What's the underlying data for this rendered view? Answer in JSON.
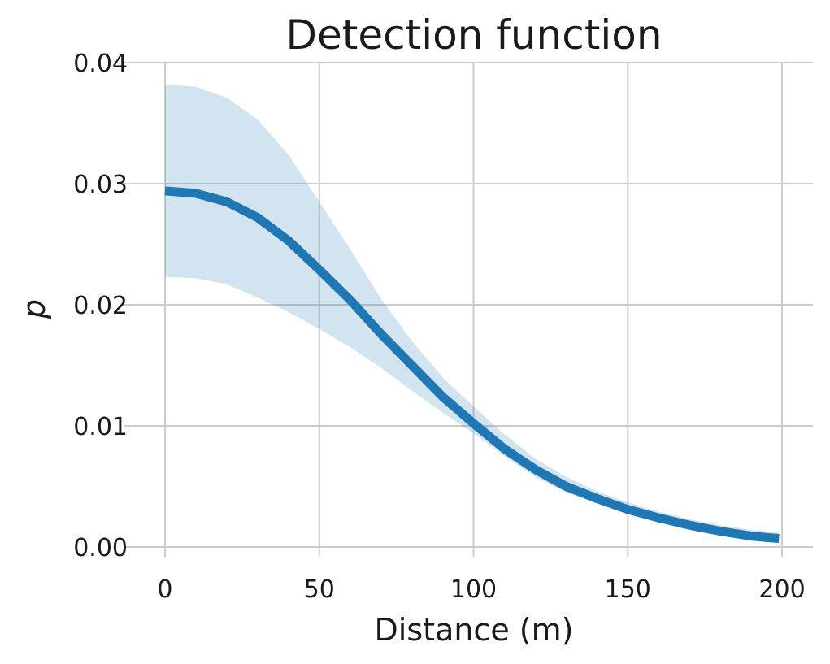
{
  "chart_data": {
    "type": "line",
    "title": "Detection function",
    "xlabel": "Distance (m)",
    "ylabel": "p",
    "xlim": [
      -10,
      210
    ],
    "ylim": [
      0,
      0.04
    ],
    "xticks": [
      0,
      50,
      100,
      150,
      200
    ],
    "xtick_labels": [
      "0",
      "50",
      "100",
      "150",
      "200"
    ],
    "yticks": [
      0,
      0.01,
      0.02,
      0.03,
      0.04
    ],
    "ytick_labels": [
      "0.00",
      "0.01",
      "0.02",
      "0.03",
      "0.04"
    ],
    "grid": true,
    "colors": {
      "line": "#1f77b4",
      "band": "#1f77b4"
    },
    "series": [
      {
        "x": [
          0,
          10,
          20,
          30,
          40,
          50,
          60,
          70,
          80,
          90,
          100,
          110,
          120,
          130,
          140,
          150,
          160,
          170,
          180,
          190,
          199
        ],
        "y": [
          0.0294,
          0.0292,
          0.0285,
          0.0272,
          0.0253,
          0.0229,
          0.0204,
          0.0176,
          0.015,
          0.0124,
          0.0102,
          0.0081,
          0.0064,
          0.005,
          0.004,
          0.0031,
          0.0024,
          0.0018,
          0.0013,
          0.0009,
          0.0007
        ],
        "lower": [
          0.0223,
          0.0222,
          0.0217,
          0.0206,
          0.0194,
          0.018,
          0.0165,
          0.0148,
          0.0129,
          0.0111,
          0.0094,
          0.0075,
          0.0058,
          0.0045,
          0.0036,
          0.0028,
          0.0021,
          0.0015,
          0.0011,
          0.0007,
          0.0005
        ],
        "upper": [
          0.0382,
          0.038,
          0.0371,
          0.0353,
          0.0324,
          0.0285,
          0.0246,
          0.0205,
          0.017,
          0.014,
          0.0116,
          0.0093,
          0.0073,
          0.0058,
          0.0046,
          0.0037,
          0.0029,
          0.0023,
          0.0018,
          0.0014,
          0.0012
        ]
      }
    ]
  }
}
